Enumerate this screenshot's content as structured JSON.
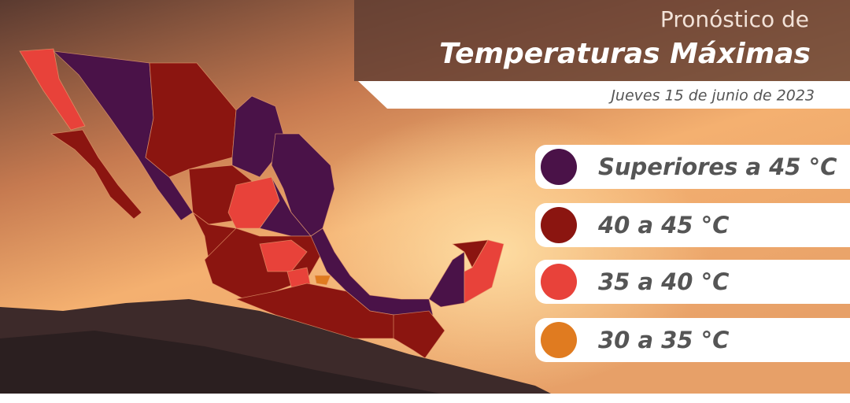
{
  "header": {
    "title_top": "Pronóstico de",
    "title_main": "Temperaturas Máximas",
    "date": "Jueves 15 de junio de 2023"
  },
  "legend": [
    {
      "label": "Superiores a 45 °C",
      "color": "#4a1248"
    },
    {
      "label": "40 a 45 °C",
      "color": "#8b1510"
    },
    {
      "label": "35 a 40 °C",
      "color": "#e8423a"
    },
    {
      "label": "30 a 35 °C",
      "color": "#e07b20"
    }
  ]
}
